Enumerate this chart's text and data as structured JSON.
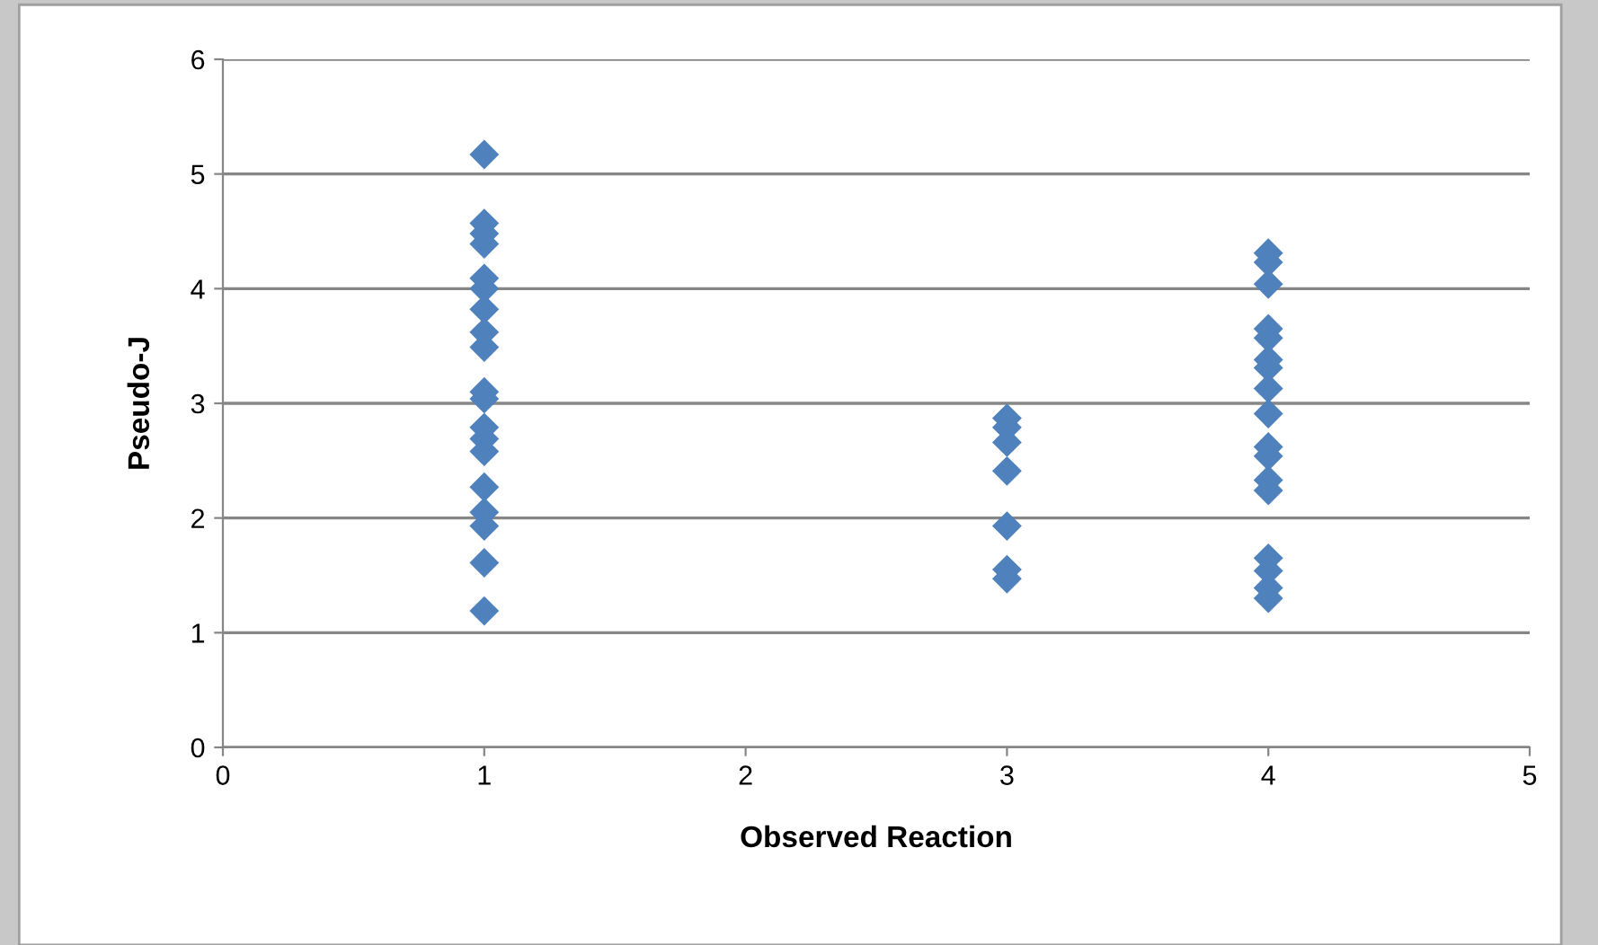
{
  "chart_data": {
    "type": "scatter",
    "xlabel": "Observed Reaction",
    "ylabel": "Pseudo-J",
    "series": [
      {
        "color": "#4f81bd",
        "x": [
          1,
          1,
          1,
          1,
          1,
          1,
          1,
          1,
          1,
          1,
          1,
          1,
          1,
          1,
          1,
          1,
          1,
          1,
          1,
          3,
          3,
          3,
          3,
          3,
          3,
          3,
          4,
          4,
          4,
          4,
          4,
          4,
          4,
          4,
          4,
          4,
          4,
          4,
          4,
          4,
          4,
          4,
          4
        ],
        "values": [
          5.17,
          4.57,
          4.48,
          4.39,
          4.09,
          4.0,
          3.82,
          3.62,
          3.49,
          3.1,
          3.04,
          2.79,
          2.69,
          2.58,
          2.27,
          2.05,
          1.93,
          1.61,
          1.19,
          2.87,
          2.79,
          2.66,
          2.41,
          1.93,
          1.55,
          1.47,
          4.31,
          4.23,
          4.04,
          3.65,
          3.57,
          3.38,
          3.31,
          3.13,
          2.91,
          2.62,
          2.54,
          2.33,
          2.24,
          1.65,
          1.54,
          1.39,
          1.3
        ]
      }
    ],
    "xlim": [
      0,
      5
    ],
    "xticks": [
      0,
      1,
      2,
      3,
      4,
      5
    ],
    "ylim": [
      0,
      6
    ],
    "yticks": [
      0,
      1,
      2,
      3,
      4,
      5,
      6
    ],
    "grid": "y",
    "marker": "diamond"
  }
}
